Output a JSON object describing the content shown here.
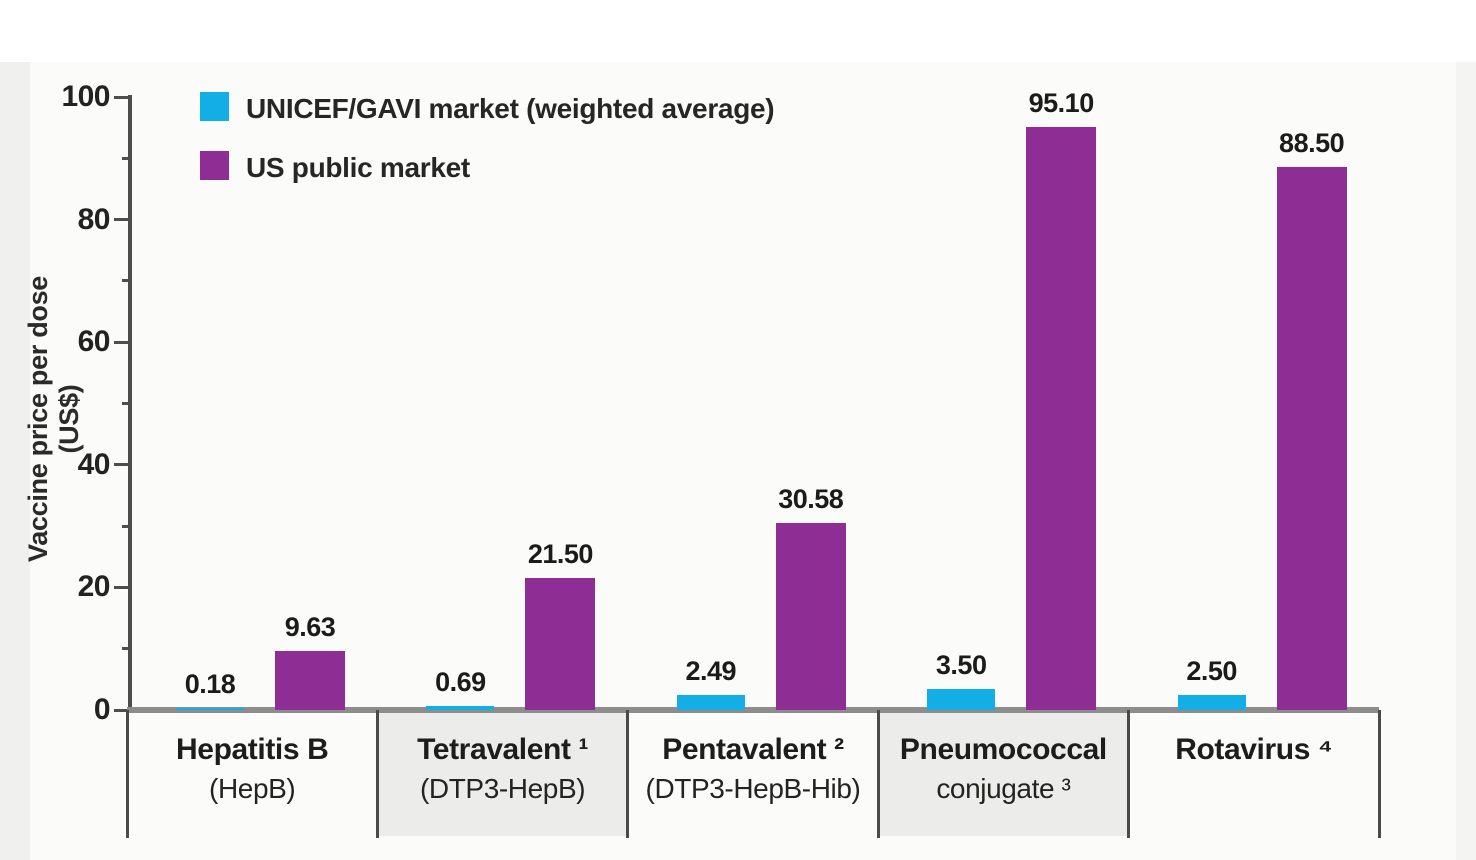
{
  "colors": {
    "series_unicef_gavi": "#14AEE6",
    "series_us_public": "#8E2D94",
    "axis_line": "#4d4d4d",
    "baseline": "#8d8d8d",
    "band_shading": "#ececea"
  },
  "chart_data": {
    "type": "bar",
    "title": "",
    "xlabel": "",
    "ylabel": "Vaccine price per dose (US$)",
    "ylim": [
      0,
      100
    ],
    "yticks_major": [
      0,
      20,
      40,
      60,
      80,
      100
    ],
    "yticks_minor": [
      10,
      30,
      50,
      70,
      90
    ],
    "grid": false,
    "legend_position": "top-left inside plot",
    "categories": [
      "Hepatitis B (HepB)",
      "Tetravalent ¹ (DTP3-HepB)",
      "Pentavalent ² (DTP3-HepB-Hib)",
      "Pneumococcal conjugate ³",
      "Rotavirus ⁴"
    ],
    "category_labels": [
      {
        "line1": "Hepatitis B",
        "line2": "(HepB)"
      },
      {
        "line1": "Tetravalent ¹",
        "line2": "(DTP3-HepB)"
      },
      {
        "line1": "Pentavalent ²",
        "line2": "(DTP3-HepB-Hib)"
      },
      {
        "line1": "Pneumococcal",
        "line2": "conjugate ³"
      },
      {
        "line1": "Rotavirus ⁴",
        "line2": ""
      }
    ],
    "series": [
      {
        "name": "UNICEF/GAVI market (weighted average)",
        "color": "#14AEE6",
        "values": [
          0.18,
          0.69,
          2.49,
          3.5,
          2.5
        ],
        "value_labels": [
          "0.18",
          "0.69",
          "2.49",
          "3.50",
          "2.50"
        ]
      },
      {
        "name": "US public market",
        "color": "#8E2D94",
        "values": [
          9.63,
          21.5,
          30.58,
          95.1,
          88.5
        ],
        "value_labels": [
          "9.63",
          "21.50",
          "30.58",
          "95.10",
          "88.50"
        ]
      }
    ]
  }
}
